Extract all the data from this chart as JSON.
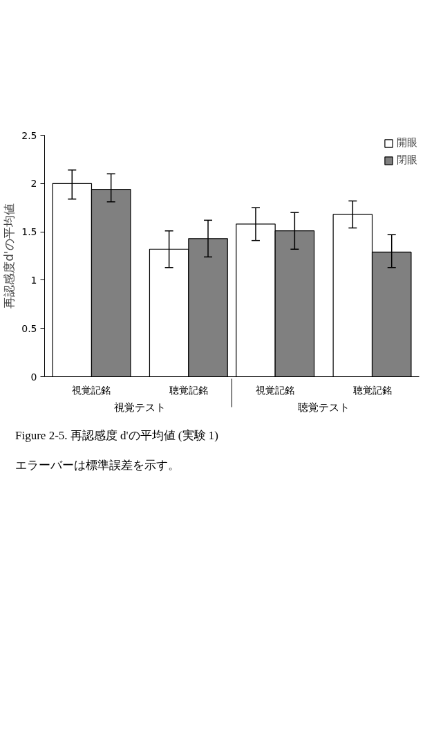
{
  "chart_data": {
    "type": "bar",
    "categories": [
      "視覚記銘",
      "聴覚記銘",
      "視覚記銘",
      "聴覚記銘"
    ],
    "series": [
      {
        "name": "開眼",
        "color": "#ffffff",
        "values": [
          2.0,
          1.32,
          1.58,
          1.68
        ],
        "errors": [
          [
            1.84,
            2.14
          ],
          [
            1.13,
            1.51
          ],
          [
            1.41,
            1.75
          ],
          [
            1.54,
            1.82
          ]
        ]
      },
      {
        "name": "閉眼",
        "color": "#808080",
        "values": [
          1.94,
          1.43,
          1.51,
          1.29
        ],
        "errors": [
          [
            1.81,
            2.1
          ],
          [
            1.24,
            1.62
          ],
          [
            1.32,
            1.7
          ],
          [
            1.13,
            1.47
          ]
        ]
      }
    ],
    "ylabel": "再認感度d'の平均値",
    "ylim": [
      0,
      2.5
    ],
    "yticks": [
      0,
      0.5,
      1,
      1.5,
      2,
      2.5
    ],
    "annotations": [
      "視覚テスト",
      "聴覚テスト",
      "Figure 2-5.  再認感度 d'の平均値  (実験 1)",
      "エラーバーは標準誤差を示す。"
    ],
    "legend": "top right",
    "grid": false
  }
}
